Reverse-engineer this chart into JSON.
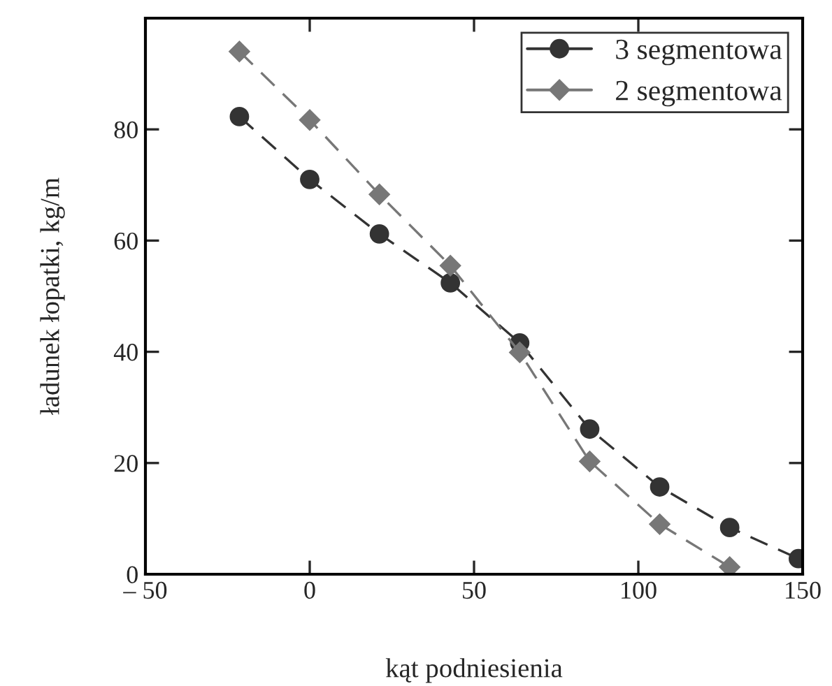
{
  "chart_data": {
    "type": "line",
    "xlabel": "kąt podniesienia",
    "ylabel": "ładunek łopatki, kg/m",
    "xlim": [
      -50,
      150
    ],
    "xticks": [
      {
        "value": -50,
        "label": "– 50"
      },
      0,
      50,
      100,
      150
    ],
    "ylim": [
      0,
      100
    ],
    "yticks": [
      0,
      20,
      40,
      60,
      80,
      {
        "value": 100,
        "label": null
      }
    ],
    "grid": false,
    "legend": "top right",
    "line_style": "dashed",
    "series": [
      {
        "name": "3 segmentowa",
        "color": "#333333",
        "marker": "circle",
        "x": [
          -21.4,
          0,
          21.2,
          42.8,
          63.9,
          85.2,
          106.5,
          127.8,
          148.7
        ],
        "values": [
          82.3,
          71.0,
          61.2,
          52.4,
          41.6,
          26.1,
          15.7,
          8.4,
          2.8
        ]
      },
      {
        "name": "2 segmentowa",
        "color": "#777777",
        "marker": "diamond",
        "x": [
          -21.4,
          0,
          21.2,
          42.8,
          63.9,
          85.2,
          106.5,
          127.8
        ],
        "values": [
          94.0,
          81.7,
          68.3,
          55.5,
          39.9,
          20.3,
          9.0,
          1.3
        ]
      }
    ]
  }
}
